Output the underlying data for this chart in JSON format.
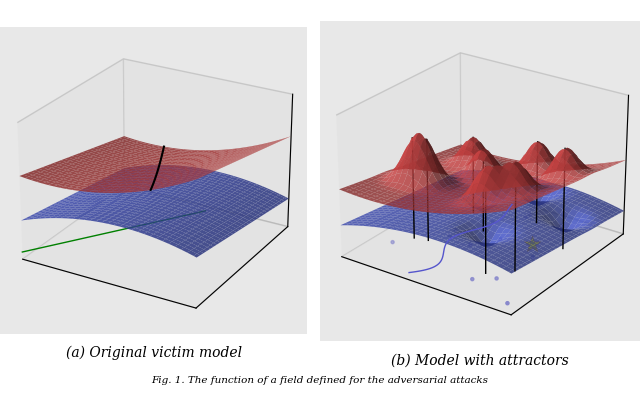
{
  "title": "Fig. 1. The function of a field defined for the adversarial attacks",
  "subtitle_a": "(a) Original victim model",
  "subtitle_b": "(b) Model with attractors",
  "background_color": "#f0f0f0",
  "grid_color": "#cccccc",
  "surface_red_color": "#cc3333",
  "surface_blue_color": "#3355cc",
  "n_points": 50,
  "elev": 25,
  "azim_a": -60,
  "azim_b": -55
}
